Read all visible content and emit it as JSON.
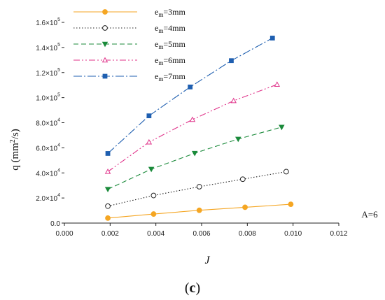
{
  "chart_data": {
    "type": "line",
    "title": "",
    "xlabel": "J",
    "ylabel": "q (mm²/s)",
    "xlim": [
      0.0,
      0.012
    ],
    "ylim": [
      0,
      160000
    ],
    "x_ticks": [
      "0.000",
      "0.002",
      "0.004",
      "0.006",
      "0.008",
      "0.010",
      "0.012"
    ],
    "y_ticks": [
      {
        "value": 0,
        "mantissa": "0.0",
        "exp": ""
      },
      {
        "value": 20000,
        "mantissa": "2.0×10",
        "exp": "4"
      },
      {
        "value": 40000,
        "mantissa": "4.0×10",
        "exp": "4"
      },
      {
        "value": 60000,
        "mantissa": "6.0×10",
        "exp": "4"
      },
      {
        "value": 80000,
        "mantissa": "8.0×10",
        "exp": "4"
      },
      {
        "value": 100000,
        "mantissa": "1.0×10",
        "exp": "5"
      },
      {
        "value": 120000,
        "mantissa": "1.2×10",
        "exp": "5"
      },
      {
        "value": 140000,
        "mantissa": "1.4×10",
        "exp": "5"
      },
      {
        "value": 160000,
        "mantissa": "1.6×10",
        "exp": "5"
      }
    ],
    "legend_position": "top-left",
    "grid": false,
    "series": [
      {
        "name_base": "e",
        "name_sub": "m",
        "name_rest": "=3mm",
        "color": "#f5a623",
        "marker": "filled-circle",
        "dash": "",
        "x": [
          0.0019,
          0.0039,
          0.0059,
          0.0079,
          0.0099
        ],
        "y": [
          4000,
          7200,
          10200,
          12600,
          15000
        ]
      },
      {
        "name_base": "e",
        "name_sub": "m",
        "name_rest": "=4mm",
        "color": "#222222",
        "marker": "open-circle",
        "dash": "1.5,2.5",
        "x": [
          0.0019,
          0.0039,
          0.0059,
          0.0078,
          0.0097
        ],
        "y": [
          13500,
          22000,
          29000,
          35000,
          41000
        ]
      },
      {
        "name_base": "e",
        "name_sub": "m",
        "name_rest": "=5mm",
        "color": "#1a8a3a",
        "marker": "filled-triangle-down",
        "dash": "7,4",
        "x": [
          0.0019,
          0.0038,
          0.0057,
          0.0076,
          0.0095
        ],
        "y": [
          27000,
          43000,
          55700,
          67000,
          76500
        ]
      },
      {
        "name_base": "e",
        "name_sub": "m",
        "name_rest": "=6mm",
        "color": "#e0338a",
        "marker": "open-triangle-up",
        "dash": "9,3,2,3,2,3",
        "x": [
          0.0019,
          0.0037,
          0.0056,
          0.0074,
          0.0093
        ],
        "y": [
          41000,
          64500,
          82500,
          97500,
          110500
        ]
      },
      {
        "name_base": "e",
        "name_sub": "m",
        "name_rest": "=7mm",
        "color": "#1f5fb0",
        "marker": "filled-square",
        "dash": "12,3,2,3",
        "x": [
          0.0019,
          0.0037,
          0.0055,
          0.0073,
          0.0091
        ],
        "y": [
          55500,
          85500,
          108500,
          129500,
          147500
        ]
      }
    ],
    "annotation": "A=6"
  },
  "panel_label": {
    "open": "(",
    "letter": "c",
    "close": ")"
  }
}
